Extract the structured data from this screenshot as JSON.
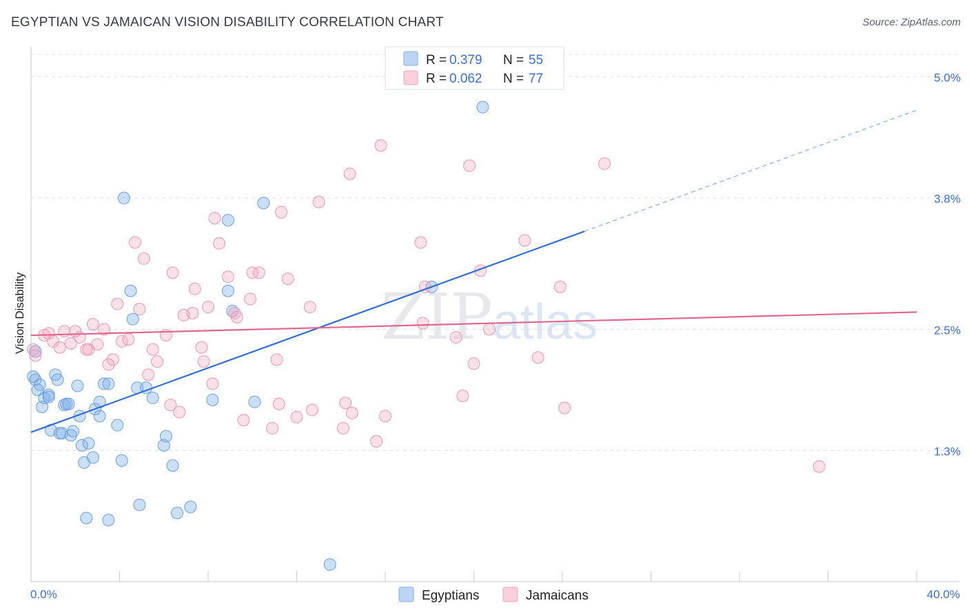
{
  "header": {
    "title": "EGYPTIAN VS JAMAICAN VISION DISABILITY CORRELATION CHART",
    "source": "Source: ZipAtlas.com"
  },
  "watermark": {
    "zip": "ZIP",
    "atlas": "atlas"
  },
  "colors": {
    "egyptians": "#7eaee8",
    "egyptians_line": "#2f6fd0",
    "jamaicans": "#f2a5bd",
    "jamaicans_line": "#e0678f",
    "tick_label": "#3c6fc7"
  },
  "legend": {
    "rows": [
      {
        "r_label": "R =",
        "r_value": "0.379",
        "n_label": "N =",
        "n_value": "55"
      },
      {
        "r_label": "R =",
        "r_value": "0.062",
        "n_label": "N =",
        "n_value": "77"
      }
    ]
  },
  "chart_data": {
    "type": "scatter",
    "title": "EGYPTIAN VS JAMAICAN VISION DISABILITY CORRELATION CHART",
    "xlabel": "",
    "ylabel": "Vision Disability",
    "xlim": [
      0,
      40
    ],
    "ylim": [
      0,
      5.25
    ],
    "x_tick_labels": [
      "0.0%",
      "40.0%"
    ],
    "y_ticks": [
      1.3,
      2.5,
      3.8,
      5.0
    ],
    "y_tick_labels": [
      "1.3%",
      "2.5%",
      "3.8%",
      "5.0%"
    ],
    "grid": true,
    "legend_position": "top-center",
    "series": [
      {
        "name": "Egyptians",
        "r": 0.379,
        "n": 55,
        "trend": {
          "x": [
            0,
            25
          ],
          "y": [
            1.48,
            3.47
          ]
        },
        "trend_dashed": {
          "x": [
            25,
            40
          ],
          "y": [
            3.47,
            4.67
          ]
        },
        "points": [
          [
            0.2,
            2.28
          ],
          [
            0.2,
            2.0
          ],
          [
            0.3,
            1.9
          ],
          [
            0.4,
            1.95
          ],
          [
            0.5,
            1.73
          ],
          [
            0.6,
            1.82
          ],
          [
            0.8,
            1.85
          ],
          [
            0.8,
            1.83
          ],
          [
            0.9,
            1.5
          ],
          [
            1.1,
            2.05
          ],
          [
            1.2,
            2.0
          ],
          [
            1.3,
            1.47
          ],
          [
            1.4,
            1.47
          ],
          [
            1.5,
            1.75
          ],
          [
            1.6,
            1.76
          ],
          [
            1.7,
            1.76
          ],
          [
            1.8,
            1.45
          ],
          [
            1.9,
            1.49
          ],
          [
            2.1,
            1.94
          ],
          [
            2.2,
            1.64
          ],
          [
            2.3,
            1.35
          ],
          [
            2.4,
            1.18
          ],
          [
            2.5,
            0.63
          ],
          [
            2.6,
            1.37
          ],
          [
            2.8,
            1.23
          ],
          [
            2.9,
            1.71
          ],
          [
            3.1,
            1.64
          ],
          [
            3.1,
            1.78
          ],
          [
            3.3,
            1.96
          ],
          [
            3.5,
            0.61
          ],
          [
            3.5,
            1.96
          ],
          [
            3.9,
            1.55
          ],
          [
            4.1,
            1.2
          ],
          [
            4.2,
            3.8
          ],
          [
            4.5,
            2.88
          ],
          [
            4.6,
            2.6
          ],
          [
            4.8,
            1.92
          ],
          [
            4.9,
            0.76
          ],
          [
            5.2,
            1.92
          ],
          [
            5.5,
            1.82
          ],
          [
            6.0,
            1.35
          ],
          [
            6.1,
            1.44
          ],
          [
            6.4,
            1.15
          ],
          [
            6.6,
            0.68
          ],
          [
            7.2,
            0.74
          ],
          [
            8.2,
            1.8
          ],
          [
            8.9,
            3.58
          ],
          [
            8.9,
            2.88
          ],
          [
            9.1,
            2.68
          ],
          [
            10.1,
            1.78
          ],
          [
            10.5,
            3.75
          ],
          [
            13.5,
            0.17
          ],
          [
            18.1,
            2.92
          ],
          [
            20.4,
            4.7
          ],
          [
            0.1,
            2.03
          ]
        ]
      },
      {
        "name": "Jamaicans",
        "r": 0.062,
        "n": 77,
        "trend": {
          "x": [
            0,
            40
          ],
          "y": [
            2.44,
            2.67
          ]
        },
        "points": [
          [
            0.1,
            2.3
          ],
          [
            0.2,
            2.24
          ],
          [
            0.6,
            2.44
          ],
          [
            0.8,
            2.46
          ],
          [
            1.0,
            2.38
          ],
          [
            1.3,
            2.32
          ],
          [
            1.5,
            2.48
          ],
          [
            1.8,
            2.36
          ],
          [
            2.0,
            2.48
          ],
          [
            2.2,
            2.42
          ],
          [
            2.5,
            2.3
          ],
          [
            2.6,
            2.3
          ],
          [
            2.8,
            2.55
          ],
          [
            3.0,
            2.35
          ],
          [
            3.3,
            2.5
          ],
          [
            3.5,
            2.15
          ],
          [
            3.7,
            2.2
          ],
          [
            3.9,
            2.75
          ],
          [
            4.1,
            2.38
          ],
          [
            4.4,
            2.4
          ],
          [
            4.7,
            3.36
          ],
          [
            4.9,
            2.7
          ],
          [
            5.1,
            3.2
          ],
          [
            5.3,
            2.05
          ],
          [
            5.5,
            2.3
          ],
          [
            5.7,
            2.18
          ],
          [
            6.1,
            2.44
          ],
          [
            6.3,
            1.75
          ],
          [
            6.4,
            3.06
          ],
          [
            6.7,
            1.68
          ],
          [
            6.9,
            2.64
          ],
          [
            7.3,
            2.66
          ],
          [
            7.4,
            2.9
          ],
          [
            7.7,
            2.32
          ],
          [
            7.8,
            2.18
          ],
          [
            8.0,
            2.72
          ],
          [
            8.2,
            1.96
          ],
          [
            8.3,
            3.6
          ],
          [
            8.5,
            3.35
          ],
          [
            8.9,
            3.02
          ],
          [
            9.2,
            2.66
          ],
          [
            9.3,
            2.62
          ],
          [
            9.6,
            1.6
          ],
          [
            9.9,
            2.8
          ],
          [
            10.0,
            3.06
          ],
          [
            10.3,
            3.06
          ],
          [
            10.9,
            1.52
          ],
          [
            11.1,
            2.2
          ],
          [
            11.2,
            1.76
          ],
          [
            11.3,
            3.66
          ],
          [
            11.6,
            3.0
          ],
          [
            12.0,
            1.63
          ],
          [
            12.6,
            2.72
          ],
          [
            12.7,
            1.7
          ],
          [
            13.0,
            3.76
          ],
          [
            14.1,
            1.52
          ],
          [
            14.2,
            1.77
          ],
          [
            14.4,
            4.04
          ],
          [
            14.5,
            1.67
          ],
          [
            15.6,
            1.39
          ],
          [
            15.8,
            4.32
          ],
          [
            16.0,
            1.64
          ],
          [
            17.6,
            3.36
          ],
          [
            17.7,
            2.56
          ],
          [
            17.8,
            2.92
          ],
          [
            19.2,
            2.42
          ],
          [
            19.5,
            1.84
          ],
          [
            19.8,
            4.12
          ],
          [
            20.0,
            2.16
          ],
          [
            20.3,
            3.08
          ],
          [
            20.7,
            2.5
          ],
          [
            22.3,
            3.38
          ],
          [
            22.9,
            2.22
          ],
          [
            23.9,
            2.92
          ],
          [
            24.1,
            1.72
          ],
          [
            25.9,
            4.14
          ],
          [
            35.6,
            1.14
          ]
        ]
      }
    ]
  },
  "bottom_legend": {
    "items": [
      {
        "label": "Egyptians"
      },
      {
        "label": "Jamaicans"
      }
    ]
  }
}
